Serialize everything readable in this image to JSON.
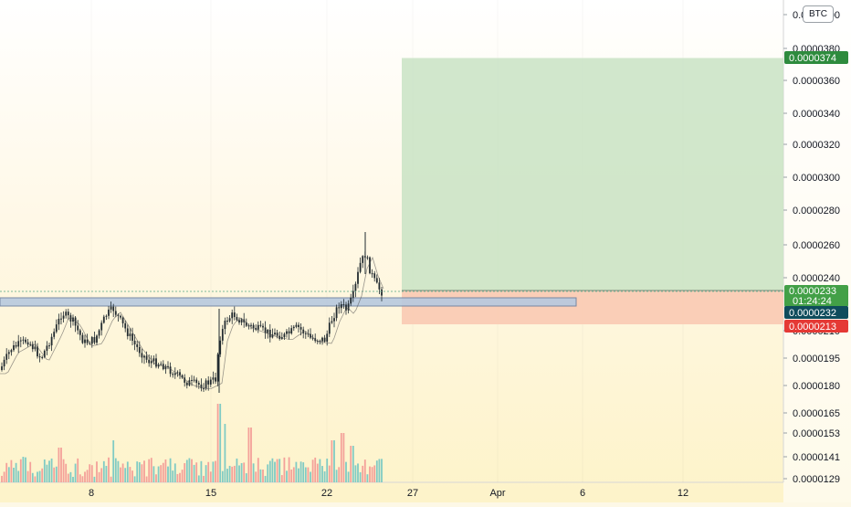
{
  "currency": "BTC",
  "colors": {
    "up": "#26a69a",
    "down": "#ef5350",
    "volume_up": "#80cbc4",
    "volume_down": "#f4a19a",
    "target_zone": "#c9e3c4",
    "stop_zone": "#f9c7b0",
    "support_zone": "#b7c9df",
    "price_tag_green": "#2e8b3e",
    "price_tag_dark": "#0f4c5c",
    "price_tag_red": "#e53935"
  },
  "price_tags": {
    "target": "0.0000374",
    "last": "0.0000233",
    "countdown": "01:24:24",
    "entry": "0.0000232",
    "stop": "0.0000213"
  },
  "chart_data": {
    "type": "candlestick",
    "x_ticks": [
      "8",
      "15",
      "22",
      "27",
      "Apr",
      "6",
      "12"
    ],
    "y_ticks": [
      "0.0000400",
      "0.0000380",
      "0.0000360",
      "0.0000340",
      "0.0000320",
      "0.0000300",
      "0.0000280",
      "0.0000260",
      "0.0000240",
      "0.0000210",
      "0.0000195",
      "0.0000180",
      "0.0000165",
      "0.0000153",
      "0.0000141",
      "0.0000129"
    ],
    "position": {
      "side": "long",
      "entry": 2.32e-05,
      "target": 3.74e-05,
      "stop": 2.13e-05
    },
    "support_zone": [
      2.26e-05,
      2.31e-05
    ],
    "last_price": 2.33e-05,
    "indicators": [
      "volume"
    ]
  }
}
